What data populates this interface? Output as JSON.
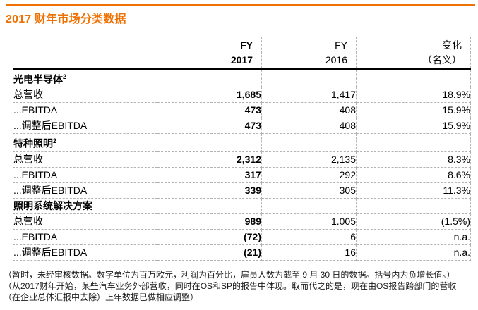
{
  "title": "2017 财年市场分类数据",
  "accent_color": "#ee7203",
  "table": {
    "header": {
      "col1_line1": "FY",
      "col1_line2": "2017",
      "col2_line1": "FY",
      "col2_line2": "2016",
      "col3_line1": "变化",
      "col3_line2": "（名义）"
    },
    "sections": [
      {
        "name": "光电半导体",
        "superscript": "2",
        "rows": [
          {
            "label": "总营收",
            "values": [
              "1,685",
              "1,417",
              "18.9%"
            ]
          },
          {
            "label": "...EBITDA",
            "values": [
              "473",
              "408",
              "15.9%"
            ]
          },
          {
            "label": "...调整后EBITDA",
            "values": [
              "473",
              "408",
              "15.9%"
            ]
          }
        ]
      },
      {
        "name": "特种照明",
        "superscript": "2",
        "rows": [
          {
            "label": "总营收",
            "values": [
              "2,312",
              "2,135",
              "8.3%"
            ]
          },
          {
            "label": "...EBITDA",
            "values": [
              "317",
              "292",
              "8.6%"
            ]
          },
          {
            "label": "...调整后EBITDA",
            "values": [
              "339",
              "305",
              "11.3%"
            ]
          }
        ]
      },
      {
        "name": "照明系统解决方案",
        "rows": [
          {
            "label": "总营收",
            "values": [
              "989",
              "1.005",
              "(1.5%)"
            ]
          },
          {
            "label": "...EBITDA",
            "values": [
              "(72)",
              "6",
              "n.a."
            ]
          },
          {
            "label": "...调整后EBITDA",
            "values": [
              "(21)",
              "16",
              "n.a."
            ]
          }
        ]
      }
    ]
  },
  "footnotes": [
    "（暂时，未经审核数据。数字单位为百万欧元，利润为百分比，雇员人数为截至 9 月 30 日的数据。括号内为负增长值。）",
    "（从2017财年开始，某些汽车业务外部营收，同时在OS和SP的报告中体现。取而代之的是，现在由OS报告跨部门的营收",
    "（在企业总体汇报中去除）上年数据已做相应调整）"
  ]
}
